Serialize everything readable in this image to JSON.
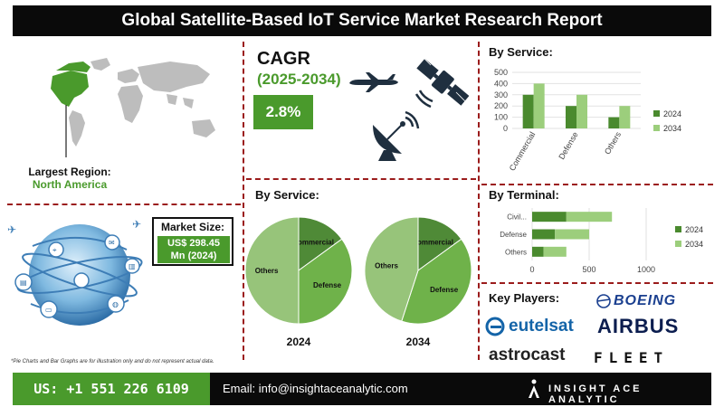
{
  "title": "Global Satellite-Based IoT Service Market Research Report",
  "largest_region": {
    "label": "Largest Region:",
    "value": "North America"
  },
  "market_size": {
    "label": "Market Size:",
    "value_line1": "US$ 298.45",
    "value_line2": "Mn  (2024)"
  },
  "cagr": {
    "label": "CAGR",
    "period": "(2025-2034)",
    "value": "2.8%"
  },
  "headings": {
    "by_service_bar": "By Service:",
    "by_service_pie": "By Service:",
    "by_terminal": "By Terminal:",
    "key_players": "Key Players:"
  },
  "footnote": "*Pie Charts and Bar Graphs are for illustration only and do not represent actual data.",
  "footer": {
    "phone": "US: +1 551 226 6109",
    "email": "Email: info@insightaceanalytic.com",
    "brand": "INSIGHT ACE ANALYTIC"
  },
  "key_players": [
    "BOEING",
    "eutelsat",
    "AIRBUS",
    "astrocast",
    "FLEET"
  ],
  "colors": {
    "dark_green": "#4a8a2e",
    "light_green": "#9cce7c",
    "accent_green": "#4a9a2c",
    "pie_dark": "#4f8a37",
    "pie_mid": "#6fb24a",
    "pie_light": "#97c47a",
    "divider": "#9b1c1c"
  },
  "icons": [
    "world-map-icon",
    "location-pin-icon",
    "globe-network-icon",
    "airplane-icon",
    "satellite-icon",
    "satellite-dish-icon"
  ],
  "chart_data": [
    {
      "id": "service_bar",
      "type": "bar",
      "categories": [
        "Commercial",
        "Defense",
        "Others"
      ],
      "series": [
        {
          "name": "2024",
          "values": [
            300,
            200,
            100
          ]
        },
        {
          "name": "2034",
          "values": [
            400,
            300,
            200
          ]
        }
      ],
      "ylim": [
        0,
        500
      ],
      "yticks": [
        0,
        100,
        200,
        300,
        400,
        500
      ],
      "legend": "right"
    },
    {
      "id": "terminal_bar",
      "type": "bar",
      "orientation": "horizontal",
      "categories": [
        "Civil...",
        "Defense",
        "Others"
      ],
      "series": [
        {
          "name": "2024",
          "values": [
            300,
            200,
            100
          ]
        },
        {
          "name": "2034",
          "values": [
            400,
            300,
            200
          ]
        }
      ],
      "xlim": [
        0,
        1000
      ],
      "xticks": [
        0,
        500,
        1000
      ],
      "legend": "right"
    },
    {
      "id": "pie_2024",
      "type": "pie",
      "title": "2024",
      "labels": [
        "Commercial",
        "Defense",
        "Others"
      ],
      "values": [
        15,
        35,
        50
      ]
    },
    {
      "id": "pie_2034",
      "type": "pie",
      "title": "2034",
      "labels": [
        "Commercial",
        "Defense",
        "Others"
      ],
      "values": [
        15,
        40,
        45
      ]
    }
  ]
}
